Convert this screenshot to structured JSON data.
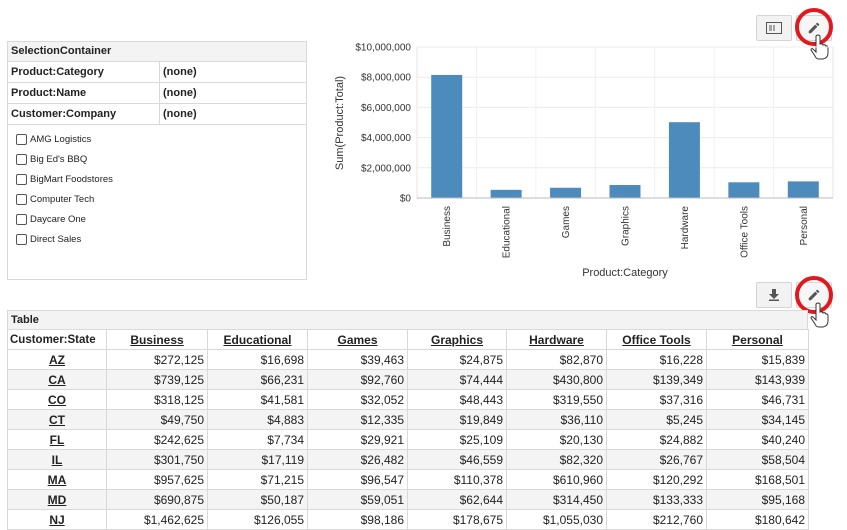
{
  "toolbar_top": {
    "buttons": [
      {
        "icon": "filter-list-icon"
      },
      {
        "icon": "pencil-icon"
      }
    ]
  },
  "toolbar_mid": {
    "buttons": [
      {
        "icon": "download-icon"
      },
      {
        "icon": "pencil-icon"
      }
    ]
  },
  "selection": {
    "title": "SelectionContainer",
    "rows": [
      {
        "label": "Product:Category",
        "value": "(none)"
      },
      {
        "label": "Product:Name",
        "value": "(none)"
      },
      {
        "label": "Customer:Company",
        "value": "(none)"
      }
    ],
    "companies": [
      "AMG Logistics",
      "Big Ed's BBQ",
      "BigMart Foodstores",
      "Computer Tech",
      "Daycare One",
      "Direct Sales"
    ]
  },
  "chart_data": {
    "type": "bar",
    "categories": [
      "Business",
      "Educational",
      "Games",
      "Graphics",
      "Hardware",
      "Office Tools",
      "Personal"
    ],
    "values": [
      8150000,
      540000,
      680000,
      860000,
      5020000,
      1040000,
      1100000
    ],
    "xlabel": "Product:Category",
    "ylabel": "Sum(Product:Total)",
    "ylim": [
      0,
      10000000
    ],
    "yticks": [
      "$0",
      "$2,000,000",
      "$4,000,000",
      "$6,000,000",
      "$8,000,000",
      "$10,000,000"
    ],
    "bar_color": "#4e8bbd",
    "grid": true
  },
  "table": {
    "title": "Table",
    "headers": [
      "Customer:State",
      "Business",
      "Educational",
      "Games",
      "Graphics",
      "Hardware",
      "Office Tools",
      "Personal"
    ],
    "rows": [
      [
        "AZ",
        "$272,125",
        "$16,698",
        "$39,463",
        "$24,875",
        "$82,870",
        "$16,228",
        "$15,839"
      ],
      [
        "CA",
        "$739,125",
        "$66,231",
        "$92,760",
        "$74,444",
        "$430,800",
        "$139,349",
        "$143,939"
      ],
      [
        "CO",
        "$318,125",
        "$41,581",
        "$32,052",
        "$48,443",
        "$319,550",
        "$37,316",
        "$46,731"
      ],
      [
        "CT",
        "$49,750",
        "$4,883",
        "$12,335",
        "$19,849",
        "$36,110",
        "$5,245",
        "$34,145"
      ],
      [
        "FL",
        "$242,625",
        "$7,734",
        "$29,921",
        "$25,109",
        "$20,130",
        "$24,882",
        "$40,240"
      ],
      [
        "IL",
        "$301,750",
        "$17,119",
        "$26,482",
        "$46,559",
        "$82,320",
        "$26,767",
        "$58,504"
      ],
      [
        "MA",
        "$957,625",
        "$71,215",
        "$96,547",
        "$110,378",
        "$610,960",
        "$120,292",
        "$168,501"
      ],
      [
        "MD",
        "$690,875",
        "$50,187",
        "$59,051",
        "$62,644",
        "$314,450",
        "$133,333",
        "$95,168"
      ],
      [
        "NJ",
        "$1,462,625",
        "$126,055",
        "$98,186",
        "$178,675",
        "$1,055,030",
        "$212,760",
        "$180,642"
      ]
    ]
  }
}
